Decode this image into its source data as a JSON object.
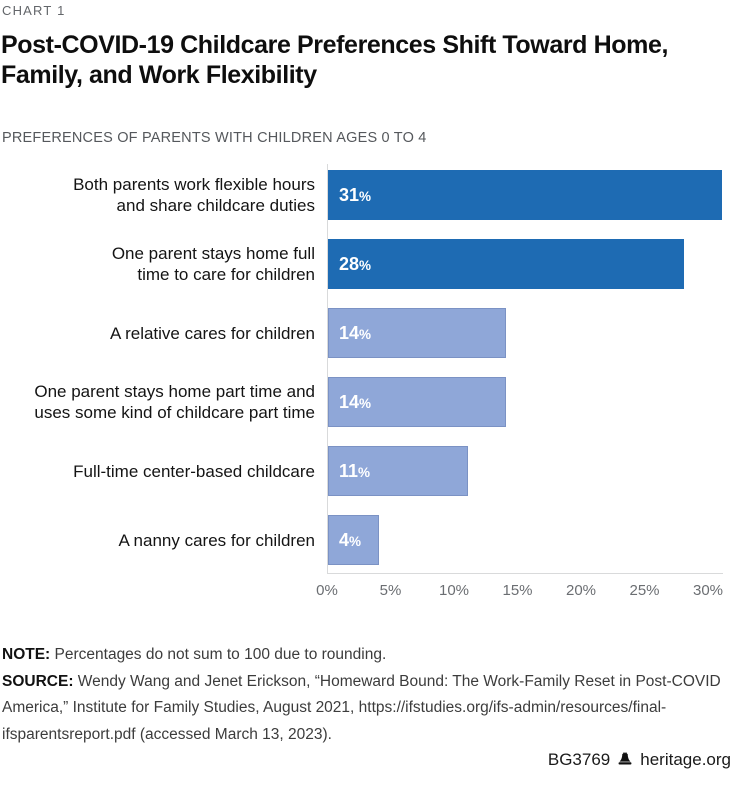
{
  "chart_label": "CHART 1",
  "title_lines": [
    "Post-COVID-19 Childcare Preferences Shift Toward Home, Family, and Work Flexibility"
  ],
  "subtitle": "PREFERENCES OF PARENTS WITH CHILDREN AGES 0 TO 4",
  "chart_data": {
    "type": "bar",
    "orientation": "horizontal",
    "title": "Post-COVID-19 Childcare Preferences Shift Toward Home, Family, and Work Flexibility",
    "subtitle": "PREFERENCES OF PARENTS WITH CHILDREN AGES 0 TO 4",
    "categories": [
      "Both parents work flexible hours\nand share childcare duties",
      "One parent stays home full\ntime to care for children",
      "A relative cares for children",
      "One parent stays home part time and\nuses some kind of childcare part time",
      "Full-time center-based childcare",
      "A nanny cares for children"
    ],
    "values": [
      31,
      28,
      14,
      14,
      11,
      4
    ],
    "value_labels": [
      "31%",
      "28%",
      "14%",
      "14%",
      "11%",
      "4%"
    ],
    "bar_styles": [
      "dark",
      "dark",
      "light",
      "light",
      "light",
      "light"
    ],
    "colors": {
      "dark": "#1e6bb3",
      "light": "#8fa7d8"
    },
    "xlim": [
      0,
      30
    ],
    "x_tick_values": [
      0,
      5,
      10,
      15,
      20,
      25,
      30
    ],
    "x_ticks": [
      "0%",
      "5%",
      "10%",
      "15%",
      "20%",
      "25%",
      "30%"
    ],
    "grid": false,
    "legend": null
  },
  "note": {
    "label": "NOTE:",
    "text": " Percentages do not sum to 100 due to rounding."
  },
  "source": {
    "label": "SOURCE:",
    "text": " Wendy Wang and Jenet Erickson, “Homeward Bound: The Work-Family Reset in Post-COVID America,” Institute for Family Studies, August 2021, https://ifstudies.org/ifs-admin/resources/final-ifsparentsreport.pdf (accessed March 13, 2023)."
  },
  "footer": {
    "report_id": "BG3769",
    "site": "heritage.org",
    "logo_icon": "liberty-bell-icon"
  }
}
